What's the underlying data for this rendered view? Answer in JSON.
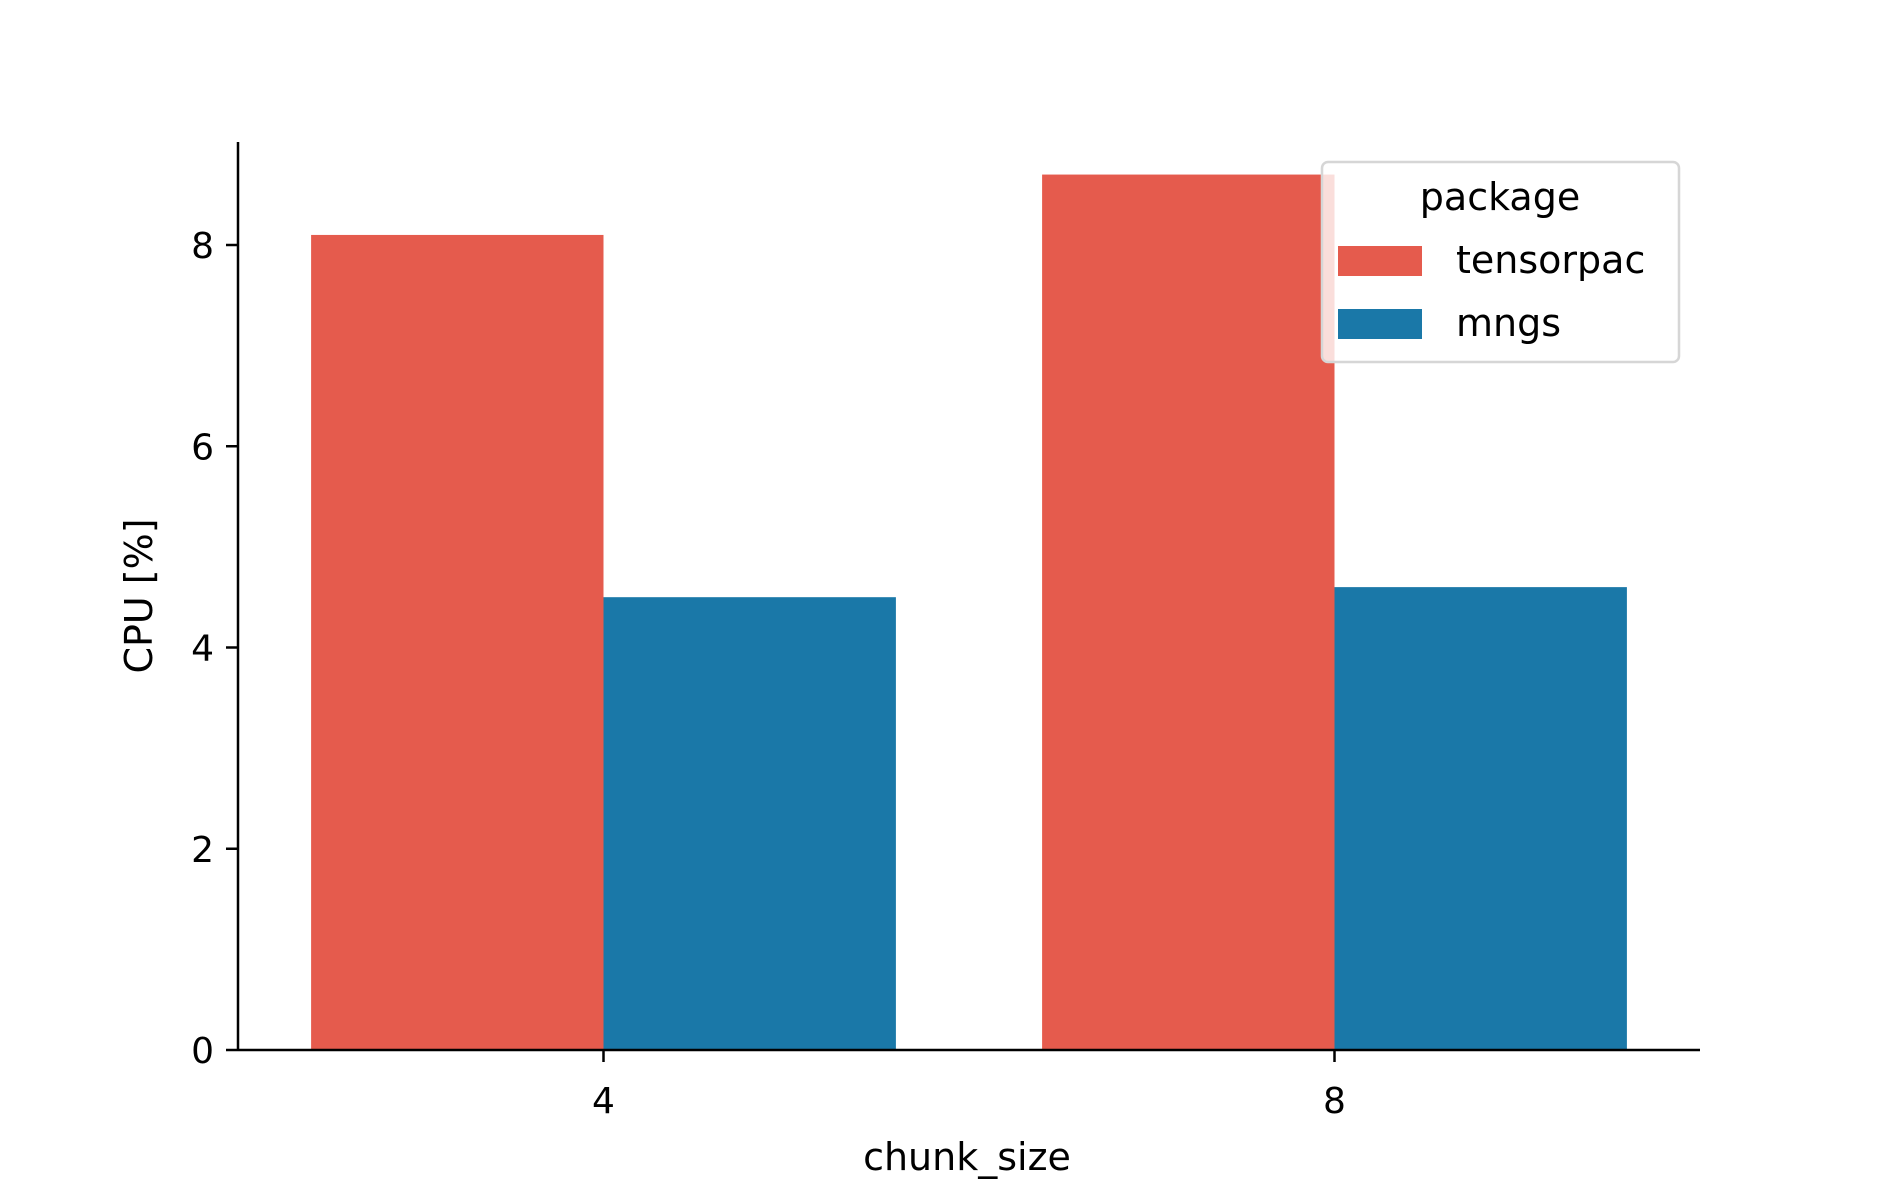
{
  "chart_data": {
    "type": "bar",
    "title": "",
    "xlabel": "chunk_size",
    "ylabel": "CPU [%]",
    "categories": [
      "4",
      "8"
    ],
    "series": [
      {
        "name": "tensorpac",
        "values": [
          8.1,
          8.7
        ],
        "color": "#e55b4d"
      },
      {
        "name": "mngs",
        "values": [
          4.5,
          4.6
        ],
        "color": "#1a78a8"
      }
    ],
    "ylim": [
      0,
      9.15
    ],
    "yticks": [
      0,
      2,
      4,
      6,
      8
    ],
    "grid": false,
    "legend": {
      "title": "package",
      "placement": "top-right"
    }
  }
}
